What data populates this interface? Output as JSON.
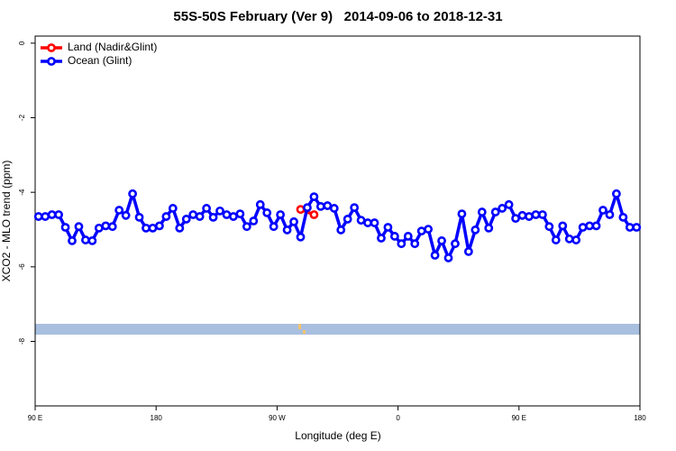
{
  "chart_data": {
    "type": "line",
    "title": "55S-50S February (Ver 9)   2014-09-06 to 2018-12-31",
    "x_label": "Longitude (deg E)",
    "y_label": "XCO2 - MLO trend (ppm)",
    "xlim": [
      90,
      540
    ],
    "xticks": [
      {
        "value": 90,
        "label": "90 E"
      },
      {
        "value": 180,
        "label": "180"
      },
      {
        "value": 270,
        "label": "90 W"
      },
      {
        "value": 360,
        "label": "0"
      },
      {
        "value": 450,
        "label": "90 E"
      },
      {
        "value": 540,
        "label": "180"
      }
    ],
    "ylim": [
      -9.73,
      0.19
    ],
    "yticks": [
      0,
      -2,
      -4,
      -6,
      -8
    ],
    "legend": "top-left",
    "series": [
      {
        "name": "Land (Nadir&Glint)",
        "color": "#ff0000",
        "x": [
          287.5,
          297.5
        ],
        "values": [
          -4.46,
          -4.6
        ]
      },
      {
        "name": "Ocean (Glint)",
        "color": "#0000ff",
        "x": [
          92.5,
          97.5,
          102.5,
          107.5,
          112.5,
          117.5,
          122.5,
          127.5,
          132.5,
          137.5,
          142.5,
          147.5,
          152.5,
          157.5,
          162.5,
          167.5,
          172.5,
          177.5,
          182.5,
          187.5,
          192.5,
          197.5,
          202.5,
          207.5,
          212.5,
          217.5,
          222.5,
          227.5,
          232.5,
          237.5,
          242.5,
          247.5,
          252.5,
          257.5,
          262.5,
          267.5,
          272.5,
          277.5,
          282.5,
          287.5,
          292.5,
          297.5,
          302.5,
          307.5,
          312.5,
          317.5,
          322.5,
          327.5,
          332.5,
          337.5,
          342.5,
          347.5,
          352.5,
          357.5,
          362.5,
          367.5,
          372.5,
          377.5,
          382.5,
          387.5,
          392.5,
          397.5,
          402.5,
          407.5,
          412.5,
          417.5,
          422.5,
          427.5,
          432.5,
          437.5,
          442.5,
          447.5,
          452.5,
          457.5,
          462.5,
          467.5,
          472.5,
          477.5,
          482.5,
          487.5,
          492.5,
          497.5,
          502.5,
          507.5,
          512.5,
          517.5,
          522.5,
          527.5,
          532.5,
          537.5
        ],
        "values": [
          -4.65,
          -4.65,
          -4.6,
          -4.6,
          -4.94,
          -5.3,
          -4.92,
          -5.28,
          -5.3,
          -4.96,
          -4.9,
          -4.92,
          -4.48,
          -4.62,
          -4.04,
          -4.67,
          -4.96,
          -4.96,
          -4.9,
          -4.65,
          -4.43,
          -4.96,
          -4.72,
          -4.6,
          -4.65,
          -4.43,
          -4.67,
          -4.5,
          -4.6,
          -4.65,
          -4.58,
          -4.92,
          -4.77,
          -4.33,
          -4.55,
          -4.92,
          -4.6,
          -5.01,
          -4.79,
          -5.2,
          -4.41,
          -4.12,
          -4.38,
          -4.36,
          -4.43,
          -5.01,
          -4.72,
          -4.41,
          -4.75,
          -4.82,
          -4.82,
          -5.23,
          -4.94,
          -5.18,
          -5.38,
          -5.18,
          -5.38,
          -5.04,
          -4.99,
          -5.69,
          -5.3,
          -5.76,
          -5.38,
          -4.58,
          -5.59,
          -5.01,
          -4.53,
          -4.96,
          -4.53,
          -4.43,
          -4.33,
          -4.7,
          -4.62,
          -4.65,
          -4.6,
          -4.6,
          -4.92,
          -5.28,
          -4.9,
          -5.25,
          -5.28,
          -4.94,
          -4.9,
          -4.9,
          -4.48,
          -4.6,
          -4.04,
          -4.67,
          -4.94,
          -4.94
        ]
      }
    ]
  }
}
